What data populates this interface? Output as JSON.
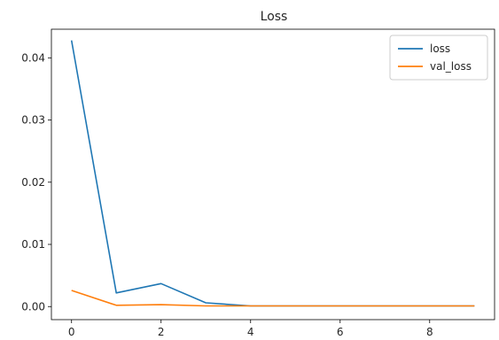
{
  "chart_data": {
    "type": "line",
    "title": "Loss",
    "xlabel": "",
    "ylabel": "",
    "x": [
      0,
      1,
      2,
      3,
      4,
      5,
      6,
      7,
      8,
      9
    ],
    "xlim": [
      -0.45,
      9.45
    ],
    "ylim": [
      -0.0021,
      0.0446
    ],
    "xticks": [
      0,
      2,
      4,
      6,
      8
    ],
    "xtick_labels": [
      "0",
      "2",
      "4",
      "6",
      "8"
    ],
    "yticks": [
      0,
      0.01,
      0.02,
      0.03,
      0.04
    ],
    "ytick_labels": [
      "0.00",
      "0.01",
      "0.02",
      "0.03",
      "0.04"
    ],
    "grid": false,
    "legend_position": "top-right",
    "series": [
      {
        "name": "loss",
        "color": "#1f77b4",
        "values": [
          0.0428,
          0.0022,
          0.0037,
          0.0006,
          0.0001,
          0.0001,
          0.0001,
          0.0001,
          0.0001,
          0.0001
        ]
      },
      {
        "name": "val_loss",
        "color": "#ff7f0e",
        "values": [
          0.0026,
          0.0002,
          0.0003,
          0.0001,
          0.0001,
          0.0001,
          0.0001,
          0.0001,
          0.0001,
          0.0001
        ]
      }
    ]
  }
}
